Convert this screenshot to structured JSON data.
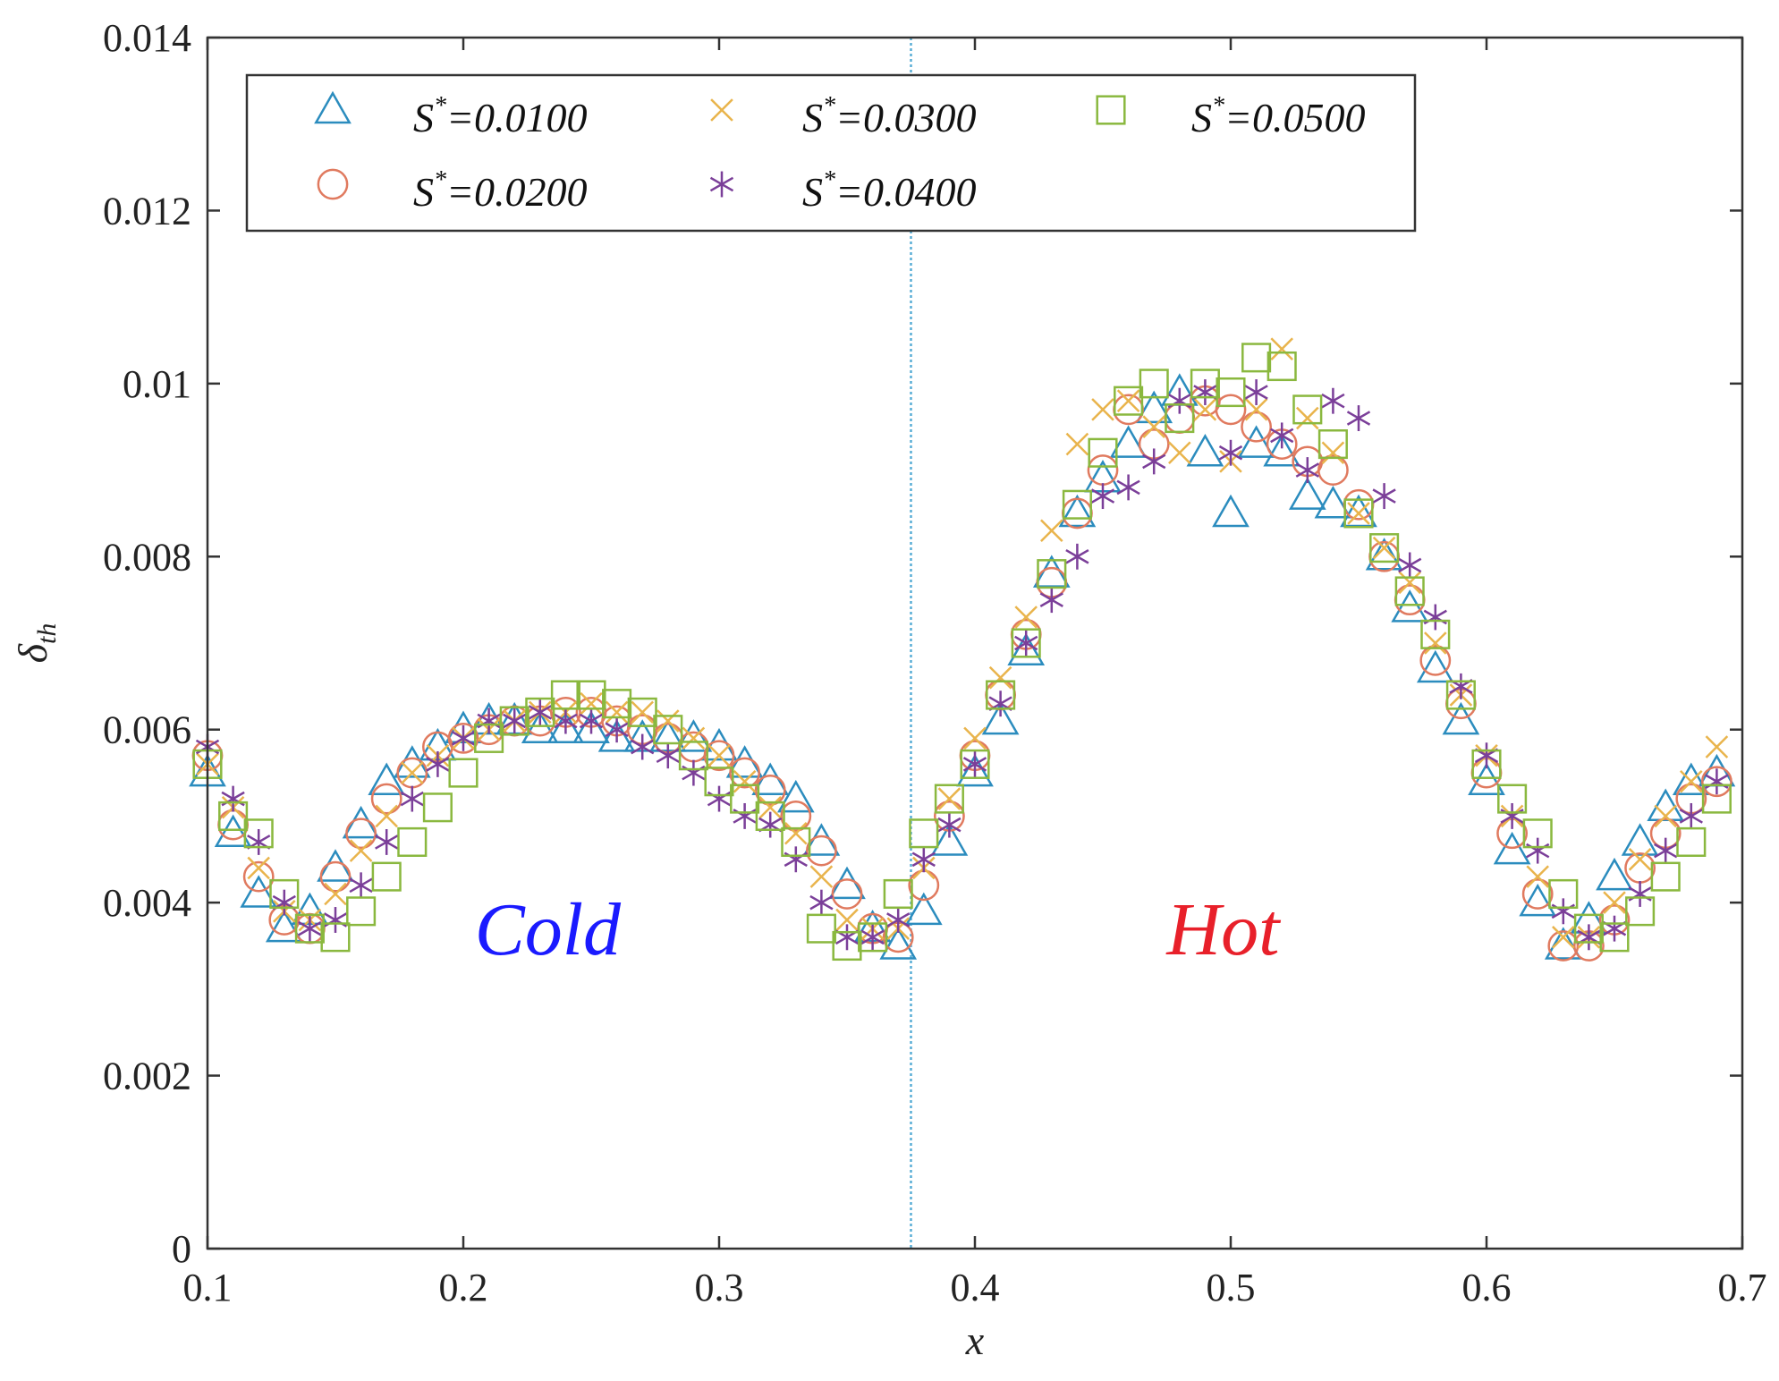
{
  "chart_data": {
    "type": "scatter",
    "xlabel": "x",
    "ylabel_base": "δ",
    "ylabel_sub": "th",
    "xlim": [
      0.1,
      0.7
    ],
    "ylim": [
      0,
      0.014
    ],
    "xticks": [
      0.1,
      0.2,
      0.3,
      0.4,
      0.5,
      0.6,
      0.7
    ],
    "xtick_labels": [
      "0.1",
      "0.2",
      "0.3",
      "0.4",
      "0.5",
      "0.6",
      "0.7"
    ],
    "yticks": [
      0,
      0.002,
      0.004,
      0.006,
      0.008,
      0.01,
      0.012,
      0.014
    ],
    "ytick_labels": [
      "0",
      "0.002",
      "0.004",
      "0.006",
      "0.008",
      "0.01",
      "0.012",
      "0.014"
    ],
    "vertical_line_x": 0.375,
    "vertical_line_color": "#5aaed6",
    "legend_position": "top-left",
    "annotations": [
      {
        "text": "Cold",
        "x": 0.233,
        "y": 0.0034,
        "color": "#1a1aff"
      },
      {
        "text": "Hot",
        "x": 0.497,
        "y": 0.0034,
        "color": "#e8202a"
      }
    ],
    "series": [
      {
        "label_base": "S",
        "label_sup": "*",
        "label_rest": "=0.0100",
        "marker": "triangle",
        "color": "#2b8cbe",
        "x": [
          0.1,
          0.11,
          0.12,
          0.13,
          0.14,
          0.15,
          0.16,
          0.17,
          0.18,
          0.19,
          0.2,
          0.21,
          0.22,
          0.23,
          0.24,
          0.25,
          0.26,
          0.27,
          0.28,
          0.29,
          0.3,
          0.31,
          0.32,
          0.33,
          0.34,
          0.35,
          0.36,
          0.37,
          0.38,
          0.39,
          0.4,
          0.41,
          0.42,
          0.43,
          0.44,
          0.45,
          0.46,
          0.47,
          0.48,
          0.49,
          0.5,
          0.51,
          0.52,
          0.53,
          0.54,
          0.55,
          0.56,
          0.57,
          0.58,
          0.59,
          0.6,
          0.61,
          0.62,
          0.63,
          0.64,
          0.65,
          0.66,
          0.67,
          0.68,
          0.69
        ],
        "y": [
          0.0055,
          0.0048,
          0.0041,
          0.0037,
          0.0039,
          0.0044,
          0.0049,
          0.0054,
          0.0056,
          0.0058,
          0.006,
          0.0061,
          0.0061,
          0.006,
          0.006,
          0.006,
          0.0059,
          0.0059,
          0.0059,
          0.0059,
          0.0058,
          0.0056,
          0.0054,
          0.0052,
          0.0047,
          0.0042,
          0.0037,
          0.0035,
          0.0039,
          0.0047,
          0.0055,
          0.0061,
          0.0069,
          0.0078,
          0.0085,
          0.0089,
          0.0093,
          0.0097,
          0.0099,
          0.0092,
          0.0085,
          0.0093,
          0.0092,
          0.0087,
          0.0086,
          0.0085,
          0.008,
          0.0074,
          0.0067,
          0.0061,
          0.0054,
          0.0046,
          0.004,
          0.0035,
          0.0038,
          0.0043,
          0.0047,
          0.0051,
          0.0054,
          0.0055
        ]
      },
      {
        "label_base": "S",
        "label_sup": "*",
        "label_rest": "=0.0200",
        "marker": "circle",
        "color": "#e07a5f",
        "x": [
          0.1,
          0.11,
          0.12,
          0.13,
          0.14,
          0.15,
          0.16,
          0.17,
          0.18,
          0.19,
          0.2,
          0.21,
          0.22,
          0.23,
          0.24,
          0.25,
          0.26,
          0.27,
          0.28,
          0.29,
          0.3,
          0.31,
          0.32,
          0.33,
          0.34,
          0.35,
          0.36,
          0.37,
          0.38,
          0.39,
          0.4,
          0.41,
          0.42,
          0.43,
          0.44,
          0.45,
          0.46,
          0.47,
          0.48,
          0.49,
          0.5,
          0.51,
          0.52,
          0.53,
          0.54,
          0.55,
          0.56,
          0.57,
          0.58,
          0.59,
          0.6,
          0.61,
          0.62,
          0.63,
          0.64,
          0.65,
          0.66,
          0.67,
          0.68,
          0.69
        ],
        "y": [
          0.0057,
          0.0049,
          0.0043,
          0.0038,
          0.0037,
          0.0043,
          0.0048,
          0.0052,
          0.0055,
          0.0058,
          0.0059,
          0.006,
          0.0061,
          0.0061,
          0.0062,
          0.0062,
          0.0061,
          0.006,
          0.0059,
          0.0058,
          0.0057,
          0.0055,
          0.0053,
          0.005,
          0.0046,
          0.0041,
          0.0037,
          0.0036,
          0.0042,
          0.005,
          0.0057,
          0.0064,
          0.0071,
          0.0077,
          0.0085,
          0.009,
          0.0097,
          0.0093,
          0.0096,
          0.0098,
          0.0097,
          0.0095,
          0.0093,
          0.0091,
          0.009,
          0.0086,
          0.008,
          0.0075,
          0.0068,
          0.0063,
          0.0055,
          0.0048,
          0.0041,
          0.0035,
          0.0035,
          0.0038,
          0.0044,
          0.0048,
          0.0052,
          0.0054
        ]
      },
      {
        "label_base": "S",
        "label_sup": "*",
        "label_rest": "=0.0300",
        "marker": "x",
        "color": "#e9b44c",
        "x": [
          0.1,
          0.11,
          0.12,
          0.13,
          0.14,
          0.15,
          0.16,
          0.17,
          0.18,
          0.19,
          0.2,
          0.21,
          0.22,
          0.23,
          0.24,
          0.25,
          0.26,
          0.27,
          0.28,
          0.29,
          0.3,
          0.31,
          0.32,
          0.33,
          0.34,
          0.35,
          0.36,
          0.37,
          0.38,
          0.39,
          0.4,
          0.41,
          0.42,
          0.43,
          0.44,
          0.45,
          0.46,
          0.47,
          0.48,
          0.49,
          0.5,
          0.51,
          0.52,
          0.53,
          0.54,
          0.55,
          0.56,
          0.57,
          0.58,
          0.59,
          0.6,
          0.61,
          0.62,
          0.63,
          0.64,
          0.65,
          0.66,
          0.67,
          0.68,
          0.69
        ],
        "y": [
          0.0056,
          0.0051,
          0.0044,
          0.0039,
          0.0038,
          0.0041,
          0.0046,
          0.005,
          0.0055,
          0.0057,
          0.0059,
          0.006,
          0.0061,
          0.0062,
          0.0062,
          0.0063,
          0.0062,
          0.0062,
          0.0061,
          0.0059,
          0.0057,
          0.0054,
          0.0051,
          0.0048,
          0.0043,
          0.0038,
          0.0037,
          0.0037,
          0.0044,
          0.0052,
          0.0059,
          0.0066,
          0.0073,
          0.0083,
          0.0093,
          0.0097,
          0.0098,
          0.0095,
          0.0092,
          0.0097,
          0.0091,
          0.0097,
          0.0104,
          0.0096,
          0.0092,
          0.0085,
          0.0081,
          0.0077,
          0.007,
          0.0064,
          0.0057,
          0.005,
          0.0043,
          0.0036,
          0.0036,
          0.004,
          0.0045,
          0.005,
          0.0054,
          0.0058
        ]
      },
      {
        "label_base": "S",
        "label_sup": "*",
        "label_rest": "=0.0400",
        "marker": "asterisk",
        "color": "#7b3f99",
        "x": [
          0.1,
          0.11,
          0.12,
          0.13,
          0.14,
          0.15,
          0.16,
          0.17,
          0.18,
          0.19,
          0.2,
          0.21,
          0.22,
          0.23,
          0.24,
          0.25,
          0.26,
          0.27,
          0.28,
          0.29,
          0.3,
          0.31,
          0.32,
          0.33,
          0.34,
          0.35,
          0.36,
          0.37,
          0.38,
          0.39,
          0.4,
          0.41,
          0.42,
          0.43,
          0.44,
          0.45,
          0.46,
          0.47,
          0.48,
          0.49,
          0.5,
          0.51,
          0.52,
          0.53,
          0.54,
          0.55,
          0.56,
          0.57,
          0.58,
          0.59,
          0.6,
          0.61,
          0.62,
          0.63,
          0.64,
          0.65,
          0.66,
          0.67,
          0.68,
          0.69
        ],
        "y": [
          0.0058,
          0.0052,
          0.0047,
          0.004,
          0.0037,
          0.0038,
          0.0042,
          0.0047,
          0.0052,
          0.0056,
          0.0059,
          0.0061,
          0.0061,
          0.0062,
          0.0061,
          0.0061,
          0.006,
          0.0058,
          0.0057,
          0.0055,
          0.0052,
          0.005,
          0.0049,
          0.0045,
          0.004,
          0.0036,
          0.0036,
          0.0038,
          0.0045,
          0.0049,
          0.0056,
          0.0063,
          0.007,
          0.0075,
          0.008,
          0.0087,
          0.0088,
          0.0091,
          0.0098,
          0.0099,
          0.0092,
          0.0099,
          0.0094,
          0.009,
          0.0098,
          0.0096,
          0.0087,
          0.0079,
          0.0073,
          0.0065,
          0.0057,
          0.005,
          0.0046,
          0.0039,
          0.0036,
          0.0037,
          0.0041,
          0.0046,
          0.005,
          0.0054
        ]
      },
      {
        "label_base": "S",
        "label_sup": "*",
        "label_rest": "=0.0500",
        "marker": "square",
        "color": "#8ab83f",
        "x": [
          0.1,
          0.11,
          0.12,
          0.13,
          0.14,
          0.15,
          0.16,
          0.17,
          0.18,
          0.19,
          0.2,
          0.21,
          0.22,
          0.23,
          0.24,
          0.25,
          0.26,
          0.27,
          0.28,
          0.29,
          0.3,
          0.31,
          0.32,
          0.33,
          0.34,
          0.35,
          0.36,
          0.37,
          0.38,
          0.39,
          0.4,
          0.41,
          0.42,
          0.43,
          0.44,
          0.45,
          0.46,
          0.47,
          0.48,
          0.49,
          0.5,
          0.51,
          0.52,
          0.53,
          0.54,
          0.55,
          0.56,
          0.57,
          0.58,
          0.59,
          0.6,
          0.61,
          0.62,
          0.63,
          0.64,
          0.65,
          0.66,
          0.67,
          0.68,
          0.69
        ],
        "y": [
          0.0056,
          0.005,
          0.0048,
          0.0041,
          0.0037,
          0.0036,
          0.0039,
          0.0043,
          0.0047,
          0.0051,
          0.0055,
          0.0059,
          0.0061,
          0.0062,
          0.0064,
          0.0064,
          0.0063,
          0.0062,
          0.006,
          0.0057,
          0.0054,
          0.0052,
          0.005,
          0.0047,
          0.0037,
          0.0035,
          0.0036,
          0.0041,
          0.0048,
          0.0052,
          0.0056,
          0.0064,
          0.007,
          0.0078,
          0.0086,
          0.0092,
          0.0098,
          0.01,
          0.0096,
          0.01,
          0.0099,
          0.0103,
          0.0102,
          0.0097,
          0.0093,
          0.0085,
          0.0081,
          0.0076,
          0.0071,
          0.0064,
          0.0056,
          0.0052,
          0.0048,
          0.0041,
          0.0037,
          0.0036,
          0.0039,
          0.0043,
          0.0047,
          0.0052
        ]
      }
    ]
  }
}
